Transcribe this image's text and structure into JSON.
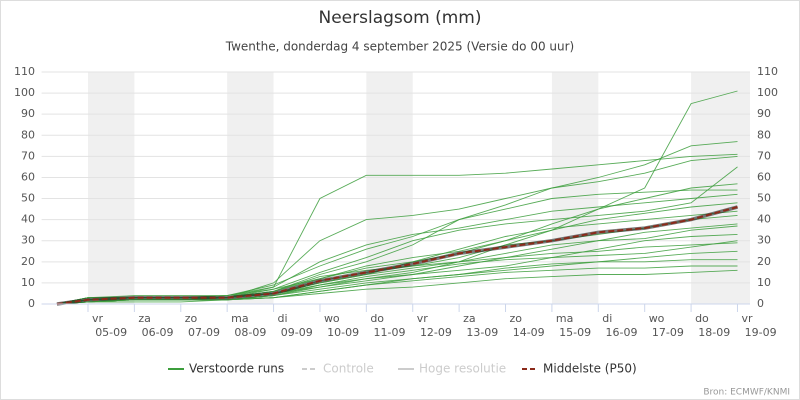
{
  "chart_data": {
    "type": "line",
    "title": "Neerslagsom (mm)",
    "subtitle": "Twenthe, donderdag 4 september 2025 (Versie do 00 uur)",
    "source": "Bron: ECMWF/KNMI",
    "x": [
      0.33,
      1,
      2,
      3,
      4,
      5,
      6,
      7,
      8,
      9,
      10,
      11,
      12,
      13,
      14,
      15
    ],
    "xlim": [
      0,
      15.27
    ],
    "xticks": [
      {
        "value": 1,
        "label": "05-09"
      },
      {
        "value": 2,
        "label": "06-09"
      },
      {
        "value": 3,
        "label": "07-09"
      },
      {
        "value": 4,
        "label": "08-09"
      },
      {
        "value": 5,
        "label": "09-09"
      },
      {
        "value": 6,
        "label": "10-09"
      },
      {
        "value": 7,
        "label": "11-09"
      },
      {
        "value": 8,
        "label": "12-09"
      },
      {
        "value": 9,
        "label": "13-09"
      },
      {
        "value": 10,
        "label": "14-09"
      },
      {
        "value": 11,
        "label": "15-09"
      },
      {
        "value": 12,
        "label": "16-09"
      },
      {
        "value": 13,
        "label": "17-09"
      },
      {
        "value": 14,
        "label": "18-09"
      },
      {
        "value": 15,
        "label": "19-09"
      }
    ],
    "weekdays": [
      "vr",
      "za",
      "zo",
      "ma",
      "di",
      "wo",
      "do",
      "vr",
      "za",
      "zo",
      "ma",
      "di",
      "wo",
      "do",
      "vr"
    ],
    "ylim": [
      0,
      110
    ],
    "yticks": [
      0,
      10,
      20,
      30,
      40,
      50,
      60,
      70,
      80,
      90,
      100,
      110
    ],
    "y2lim": [
      0,
      110
    ],
    "y2ticks": [
      0,
      10,
      20,
      30,
      40,
      50,
      60,
      70,
      80,
      90,
      100,
      110
    ],
    "grid": true,
    "legend": "bottom",
    "ensemble": {
      "name": "Verstoorde runs",
      "color": "#3c9e3c",
      "members": [
        [
          0,
          3,
          3,
          3,
          3,
          5,
          9,
          12,
          15,
          20,
          28,
          35,
          45,
          55,
          95,
          101
        ],
        [
          0,
          2,
          3,
          3,
          3,
          8,
          50,
          61,
          61,
          61,
          62,
          64,
          66,
          68,
          70,
          71
        ],
        [
          0,
          2,
          2,
          2,
          3,
          6,
          14,
          20,
          28,
          40,
          47,
          55,
          60,
          66,
          75,
          77
        ],
        [
          0,
          3,
          4,
          4,
          4,
          7,
          12,
          18,
          22,
          25,
          30,
          38,
          45,
          50,
          55,
          57
        ],
        [
          0,
          1,
          2,
          2,
          2,
          4,
          8,
          12,
          14,
          16,
          18,
          22,
          26,
          30,
          32,
          33
        ],
        [
          0,
          2,
          3,
          3,
          3,
          5,
          10,
          14,
          17,
          20,
          24,
          28,
          30,
          31,
          35,
          37
        ],
        [
          0,
          1,
          1,
          1,
          2,
          3,
          6,
          9,
          12,
          14,
          16,
          18,
          20,
          22,
          24,
          25
        ],
        [
          0,
          3,
          3,
          3,
          4,
          9,
          18,
          26,
          32,
          40,
          45,
          50,
          52,
          53,
          54,
          54
        ],
        [
          0,
          1,
          2,
          2,
          2,
          3,
          5,
          7,
          8,
          10,
          12,
          13,
          14,
          14,
          15,
          16
        ],
        [
          0,
          2,
          3,
          3,
          3,
          6,
          12,
          17,
          20,
          24,
          30,
          35,
          40,
          43,
          46,
          48
        ],
        [
          0,
          2,
          3,
          3,
          3,
          7,
          15,
          22,
          30,
          35,
          38,
          40,
          42,
          44,
          48,
          65
        ],
        [
          0,
          1,
          2,
          2,
          2,
          4,
          9,
          13,
          16,
          19,
          21,
          22,
          23,
          24,
          27,
          30
        ],
        [
          0,
          3,
          3,
          3,
          3,
          10,
          30,
          40,
          42,
          45,
          50,
          55,
          58,
          62,
          68,
          70
        ],
        [
          0,
          2,
          2,
          2,
          3,
          5,
          11,
          15,
          18,
          22,
          28,
          30,
          33,
          36,
          40,
          42
        ],
        [
          0,
          1,
          2,
          2,
          2,
          4,
          7,
          10,
          12,
          14,
          17,
          19,
          20,
          20,
          21,
          21
        ],
        [
          0,
          2,
          3,
          3,
          3,
          5,
          10,
          14,
          20,
          26,
          32,
          36,
          38,
          40,
          42,
          44
        ],
        [
          0,
          1,
          2,
          2,
          3,
          6,
          13,
          16,
          18,
          20,
          22,
          24,
          25,
          27,
          28,
          29
        ],
        [
          0,
          2,
          2,
          2,
          2,
          3,
          6,
          9,
          11,
          13,
          15,
          16,
          17,
          17,
          18,
          18
        ],
        [
          0,
          3,
          3,
          3,
          4,
          8,
          20,
          28,
          33,
          36,
          40,
          44,
          46,
          48,
          50,
          52
        ],
        [
          0,
          2,
          3,
          3,
          3,
          5,
          8,
          11,
          14,
          18,
          22,
          26,
          30,
          34,
          36,
          38
        ]
      ]
    },
    "series": [
      {
        "name": "Controle",
        "color": "#bbbbbb",
        "dash": true,
        "hidden": true
      },
      {
        "name": "Hoge resolutie",
        "color": "#bbbbbb",
        "dash": false,
        "hidden": true
      },
      {
        "name": "Middelste (P50)",
        "color": "#8b2a1a",
        "dash": true,
        "hidden": false,
        "values": [
          0,
          2,
          3,
          3,
          3,
          5,
          11,
          15,
          19,
          24,
          27,
          30,
          34,
          36,
          40,
          46
        ]
      }
    ]
  }
}
